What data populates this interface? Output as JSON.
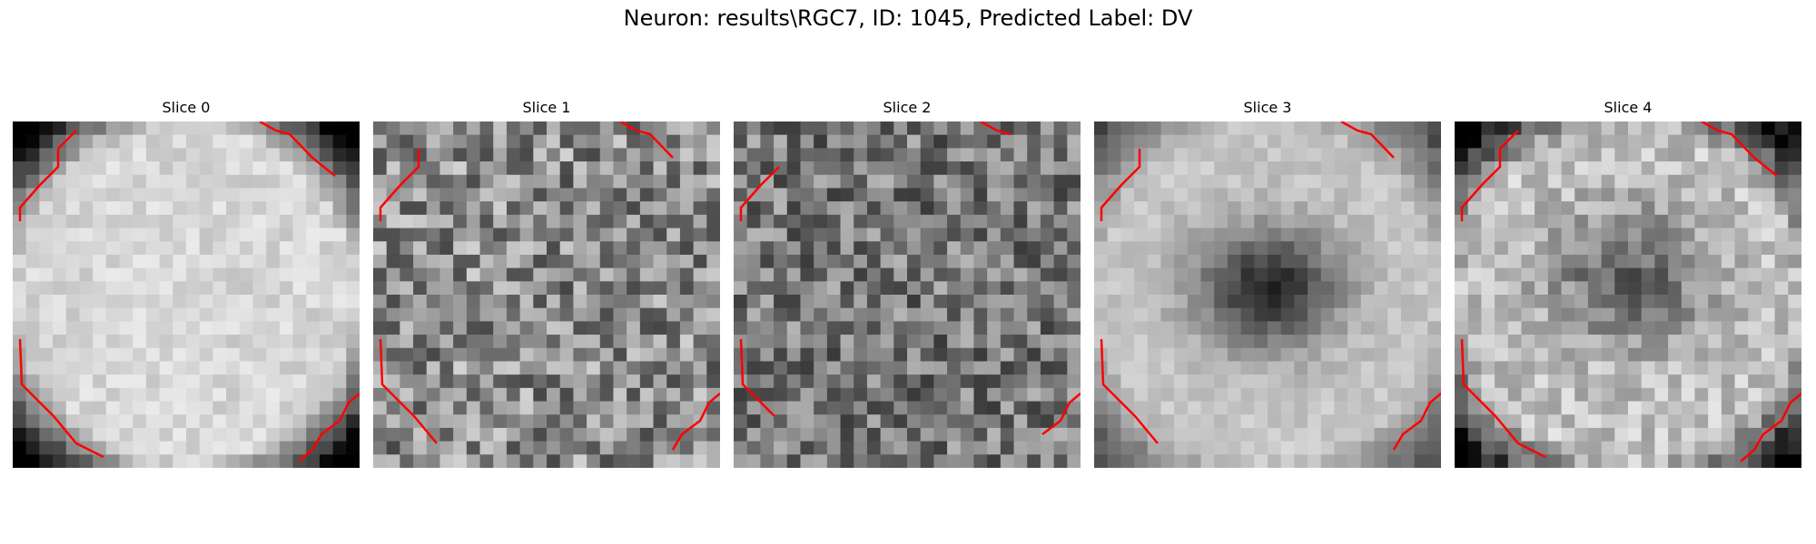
{
  "figure": {
    "title": "Neuron: results\\RGC7, ID: 1045, Predicted Label: DV"
  },
  "panels": [
    {
      "title": "Slice 0",
      "pattern": "bright-disk",
      "seed": 11
    },
    {
      "title": "Slice 1",
      "pattern": "uniform-noise",
      "seed": 23
    },
    {
      "title": "Slice 2",
      "pattern": "uniform-noise-dark",
      "seed": 37
    },
    {
      "title": "Slice 3",
      "pattern": "center-dark-blob",
      "seed": 51
    },
    {
      "title": "Slice 4",
      "pattern": "center-dark-faint",
      "seed": 67
    }
  ],
  "colors": {
    "contour": "#ff0000",
    "background": "#ffffff"
  }
}
